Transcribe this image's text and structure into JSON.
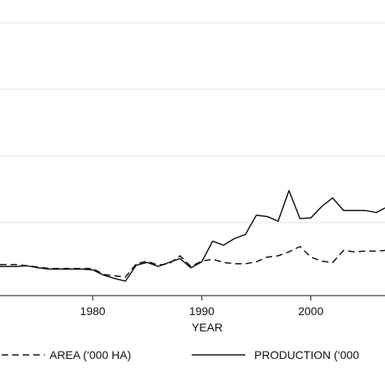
{
  "chart_data": {
    "type": "line",
    "title": "",
    "xlabel": "YEAR",
    "ylabel": "",
    "xlim": [
      1971.5,
      2006.8
    ],
    "ylim": [
      0,
      400
    ],
    "x_ticks": [
      1980,
      1990,
      2000
    ],
    "x_tick_labels": [
      "1980",
      "1990",
      "2000"
    ],
    "y_gridlines": [
      100,
      200,
      300,
      400
    ],
    "grid": true,
    "legend_position": "bottom",
    "series": [
      {
        "name": "AREA (‘000 HA)",
        "line_style": "dashed",
        "color": "#111111",
        "x": [
          1971.5,
          1973,
          1974,
          1975,
          1976,
          1977,
          1978,
          1979,
          1980,
          1981,
          1982,
          1983,
          1984,
          1985,
          1986,
          1987,
          1988,
          1989,
          1990,
          1991,
          1992,
          1993,
          1994,
          1995,
          1996,
          1997,
          1998,
          1999,
          2000,
          2001,
          2002,
          2003,
          2004,
          2005,
          2006,
          2006.8
        ],
        "values": [
          37,
          37,
          35,
          33,
          31,
          31,
          31,
          31,
          31,
          22,
          20,
          18,
          38,
          42,
          36,
          38,
          50,
          34,
          42,
          45,
          40,
          38,
          38,
          41,
          48,
          50,
          56,
          64,
          48,
          42,
          40,
          58,
          56,
          57,
          57,
          58
        ]
      },
      {
        "name": "PRODUCTION (‘000",
        "line_style": "solid",
        "color": "#111111",
        "x": [
          1971.5,
          1973,
          1974,
          1975,
          1976,
          1977,
          1978,
          1979,
          1980,
          1981,
          1982,
          1983,
          1984,
          1985,
          1986,
          1987,
          1988,
          1989,
          1990,
          1991,
          1992,
          1993,
          1994,
          1995,
          1996,
          1997,
          1998,
          1999,
          2000,
          2001,
          2002,
          2003,
          2004,
          2005,
          2006,
          2006.8
        ],
        "values": [
          34,
          34,
          35,
          32,
          30,
          30,
          30,
          30,
          29,
          21,
          16,
          12,
          36,
          40,
          34,
          40,
          46,
          32,
          41,
          72,
          66,
          76,
          82,
          111,
          109,
          102,
          148,
          106,
          107,
          124,
          137,
          118,
          118,
          118,
          115,
          122
        ]
      }
    ]
  }
}
